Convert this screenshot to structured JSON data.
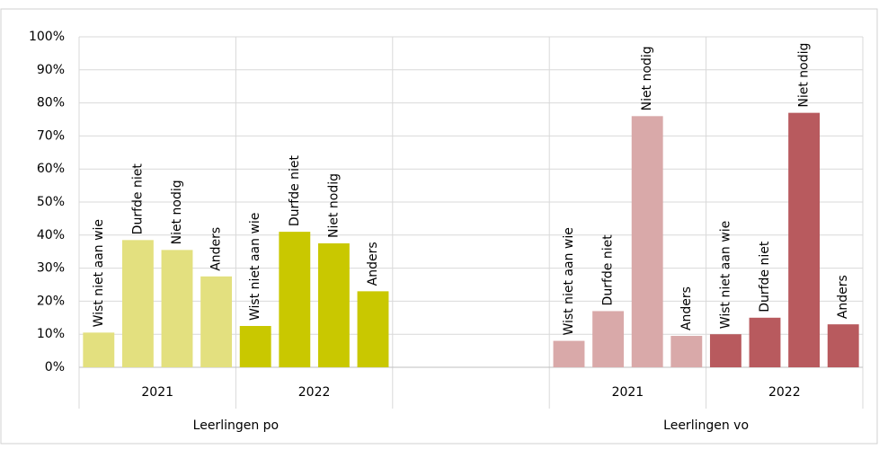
{
  "chart_data": {
    "type": "bar",
    "bar_labels": [
      "Wist niet aan wie",
      "Durfde niet",
      "Niet nodig",
      "Anders"
    ],
    "groups": [
      {
        "name": "Leerlingen po",
        "series": [
          {
            "name": "2021",
            "color": "#e3e07f",
            "values": [
              10.5,
              38.5,
              35.5,
              27.5
            ]
          },
          {
            "name": "2022",
            "color": "#c9c800",
            "values": [
              12.5,
              41,
              37.5,
              23
            ]
          }
        ]
      },
      {
        "name": "Leerlingen vo",
        "series": [
          {
            "name": "2021",
            "color": "#d9a9a9",
            "values": [
              8,
              17,
              76,
              9.5
            ]
          },
          {
            "name": "2022",
            "color": "#b85a5e",
            "values": [
              10,
              15,
              77,
              13
            ]
          }
        ]
      }
    ],
    "ylim": [
      0,
      100
    ],
    "yticks": [
      {
        "value": 0,
        "label": "0%"
      },
      {
        "value": 10,
        "label": "10%"
      },
      {
        "value": 20,
        "label": "20%"
      },
      {
        "value": 30,
        "label": "30%"
      },
      {
        "value": 40,
        "label": "40%"
      },
      {
        "value": 50,
        "label": "50%"
      },
      {
        "value": 60,
        "label": "60%"
      },
      {
        "value": 70,
        "label": "70%"
      },
      {
        "value": 80,
        "label": "80%"
      },
      {
        "value": 90,
        "label": "90%"
      },
      {
        "value": 100,
        "label": "100%"
      }
    ],
    "grid": true
  }
}
